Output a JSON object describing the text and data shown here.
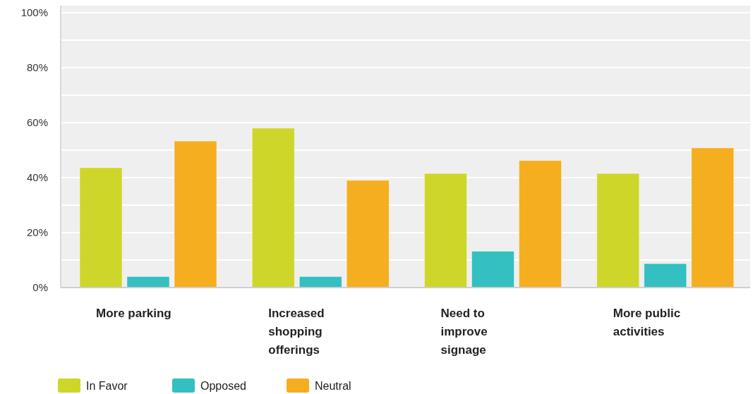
{
  "chart_data": {
    "type": "bar",
    "categories": [
      "More parking",
      "Increased shopping offerings",
      "Need to improve signage",
      "More public activities"
    ],
    "series": [
      {
        "name": "In Favor",
        "color": "#ced62a",
        "values": [
          43.6,
          58,
          41.5,
          41.5
        ]
      },
      {
        "name": "Opposed",
        "color": "#34bfc1",
        "values": [
          4,
          4,
          13.2,
          8.7
        ]
      },
      {
        "name": "Neutral",
        "color": "#f5ae1f",
        "values": [
          53.3,
          39,
          46.2,
          50.8
        ]
      }
    ],
    "ylim": [
      0,
      100
    ],
    "yticks": [
      {
        "value": 0,
        "label": "0%"
      },
      {
        "value": 10,
        "label": null
      },
      {
        "value": 20,
        "label": "20%"
      },
      {
        "value": 30,
        "label": null
      },
      {
        "value": 40,
        "label": "40%"
      },
      {
        "value": 50,
        "label": null
      },
      {
        "value": 60,
        "label": "60%"
      },
      {
        "value": 70,
        "label": null
      },
      {
        "value": 80,
        "label": "80%"
      },
      {
        "value": 90,
        "label": null
      },
      {
        "value": 100,
        "label": "100%"
      }
    ],
    "grid": "y",
    "legend": "bottom left"
  }
}
